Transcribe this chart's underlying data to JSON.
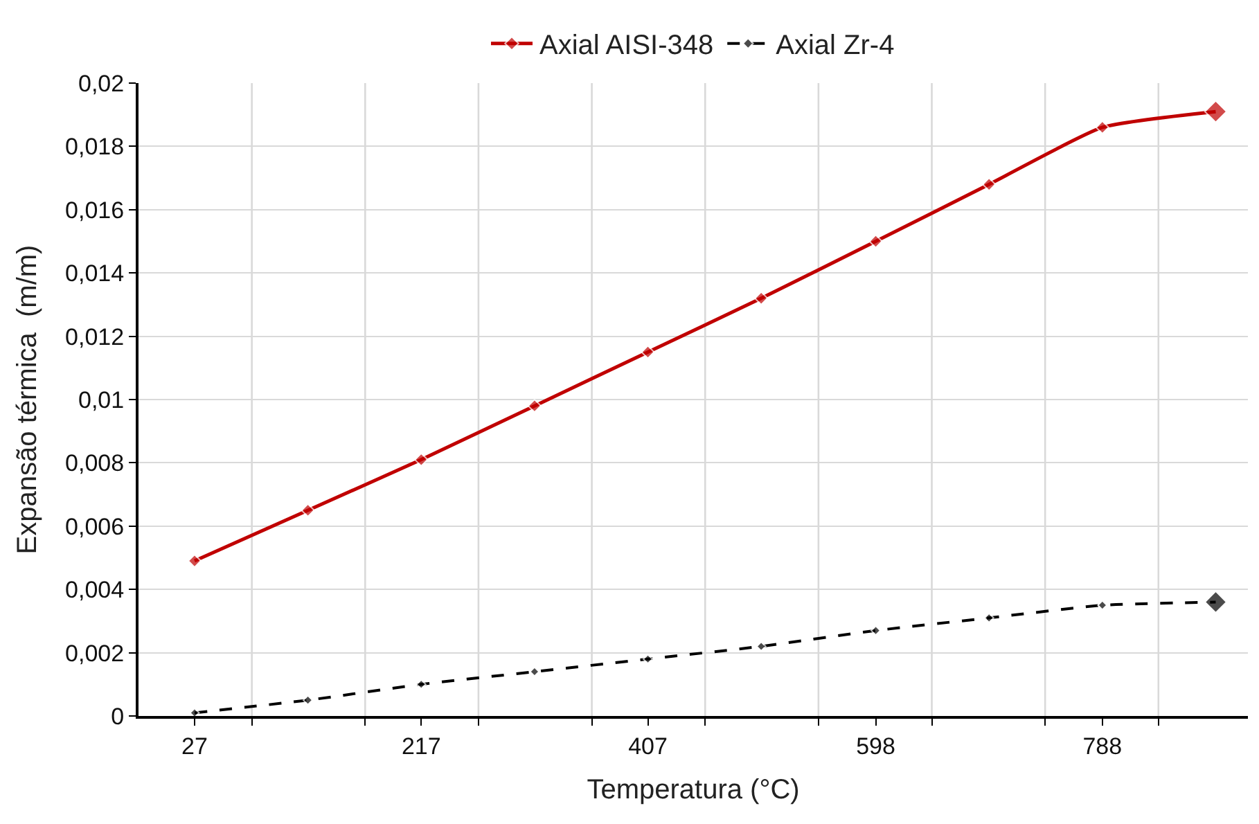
{
  "chart_data": {
    "type": "line",
    "xlabel": "Temperatura (°C)",
    "ylabel": "Expansão térmica  (m/m)",
    "x": [
      27,
      122,
      217,
      312,
      407,
      502,
      598,
      693,
      788,
      883
    ],
    "series": [
      {
        "name": "Axial AISI-348",
        "color": "#c00000",
        "values": [
          0.0049,
          0.0065,
          0.0081,
          0.0098,
          0.0115,
          0.0132,
          0.015,
          0.0168,
          0.0186,
          0.0191
        ],
        "marker": "diamond",
        "line_style": "solid"
      },
      {
        "name": "Axial Zr-4",
        "color": "#000000",
        "values": [
          0.0001,
          0.0005,
          0.001,
          0.0014,
          0.0018,
          0.0022,
          0.0027,
          0.0031,
          0.0035,
          0.0036
        ],
        "marker": "diamond",
        "line_style": "dashed"
      }
    ],
    "xlim": [
      -20,
      910
    ],
    "xticks": [
      27,
      217,
      407,
      598,
      788,
      {
        "value": 75,
        "label": null
      },
      {
        "value": 170,
        "label": null
      },
      {
        "value": 265,
        "label": null
      },
      {
        "value": 360,
        "label": null
      },
      {
        "value": 455,
        "label": null
      },
      {
        "value": 550,
        "label": null
      },
      {
        "value": 645,
        "label": null
      },
      {
        "value": 740,
        "label": null
      },
      {
        "value": 835,
        "label": null
      }
    ],
    "ylim": [
      0,
      0.02
    ],
    "yticks": [
      {
        "value": 0,
        "label": "0"
      },
      {
        "value": 0.002,
        "label": "0,002"
      },
      {
        "value": 0.004,
        "label": "0,004"
      },
      {
        "value": 0.006,
        "label": "0,006"
      },
      {
        "value": 0.008,
        "label": "0,008"
      },
      {
        "value": 0.01,
        "label": "0,01"
      },
      {
        "value": 0.012,
        "label": "0,012"
      },
      {
        "value": 0.014,
        "label": "0,014"
      },
      {
        "value": 0.016,
        "label": "0,016"
      },
      {
        "value": 0.018,
        "label": "0,018"
      },
      {
        "value": 0.02,
        "label": "0,02"
      }
    ],
    "grid": true,
    "legend": "top"
  }
}
